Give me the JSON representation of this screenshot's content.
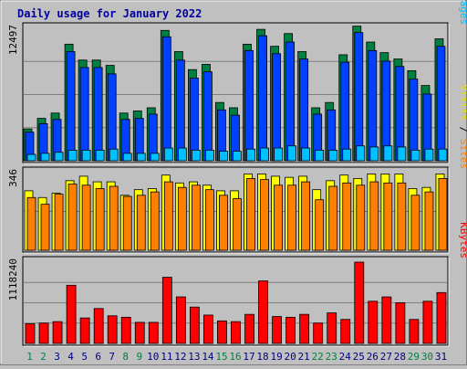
{
  "chart_data": {
    "type": "bar",
    "title": "Daily usage for January 2022",
    "categories": [
      "1",
      "2",
      "3",
      "4",
      "5",
      "6",
      "7",
      "8",
      "9",
      "10",
      "11",
      "12",
      "13",
      "14",
      "15",
      "16",
      "17",
      "18",
      "19",
      "20",
      "21",
      "22",
      "23",
      "24",
      "25",
      "26",
      "27",
      "28",
      "29",
      "30",
      "31"
    ],
    "weekend_days": [
      "1",
      "2",
      "8",
      "9",
      "15",
      "16",
      "22",
      "23",
      "29",
      "30"
    ],
    "panels": [
      {
        "id": "pages-files-hits",
        "ymax_label": "12497",
        "ymax": 12497,
        "label_parts": [
          "Pages",
          " / ",
          "Files",
          " / ",
          "Hits"
        ],
        "series": [
          {
            "name": "Hits",
            "color": "#008040",
            "values": [
              3000,
              4000,
              4500,
              11000,
              9500,
              9500,
              9000,
              4500,
              4700,
              5000,
              12300,
              10300,
              8600,
              9100,
              5500,
              5000,
              11000,
              12400,
              10800,
              12000,
              10300,
              5000,
              5500,
              10000,
              12700,
              11200,
              10200,
              9600,
              8500,
              7100,
              11500
            ]
          },
          {
            "name": "Files",
            "color": "#0040FF",
            "values": [
              2700,
              3500,
              3900,
              10300,
              8800,
              8800,
              8200,
              3900,
              4000,
              4400,
              11700,
              9500,
              7800,
              8400,
              4800,
              4300,
              10400,
              11800,
              10100,
              11200,
              9600,
              4400,
              4800,
              9300,
              12100,
              10400,
              9400,
              8900,
              7700,
              6300,
              10800
            ]
          },
          {
            "name": "Pages",
            "color": "#00C0FF",
            "values": [
              600,
              700,
              800,
              1000,
              1000,
              1000,
              1100,
              700,
              700,
              700,
              1200,
              1200,
              1000,
              1000,
              900,
              900,
              1100,
              1200,
              1200,
              1400,
              1200,
              1000,
              1000,
              1100,
              1400,
              1300,
              1400,
              1300,
              1000,
              1100,
              1100
            ]
          }
        ]
      },
      {
        "id": "visits-sites",
        "ymax_label": "346",
        "ymax": 346,
        "label_parts": [
          "Sites",
          " / ",
          "Visits"
        ],
        "series": [
          {
            "name": "Visits",
            "color": "#FFFF00",
            "values": [
              265,
              235,
              255,
              310,
              330,
              305,
              305,
              245,
              270,
              275,
              335,
              300,
              305,
              290,
              265,
              265,
              340,
              340,
              330,
              325,
              330,
              270,
              310,
              335,
              320,
              340,
              340,
              340,
              275,
              280,
              340
            ]
          },
          {
            "name": "Sites",
            "color": "#FF8000",
            "values": [
              235,
              205,
              250,
              295,
              290,
              275,
              285,
              240,
              245,
              260,
              305,
              280,
              290,
              270,
              245,
              230,
              320,
              315,
              290,
              290,
              305,
              225,
              285,
              300,
              290,
              305,
              300,
              300,
              245,
              260,
              320
            ]
          }
        ]
      },
      {
        "id": "kbytes",
        "ymax_label": "1118240",
        "ymax": 1118240,
        "label_parts": [
          "KBytes"
        ],
        "series": [
          {
            "name": "KBytes",
            "color": "#FF0000",
            "values": [
              270000,
              280000,
              300000,
              800000,
              350000,
              480000,
              380000,
              360000,
              290000,
              290000,
              910000,
              640000,
              500000,
              390000,
              310000,
              300000,
              400000,
              860000,
              370000,
              360000,
              400000,
              280000,
              420000,
              330000,
              1118240,
              580000,
              640000,
              560000,
              330000,
              580000,
              700000
            ]
          }
        ]
      }
    ],
    "label_colors": {
      "title": "#0000A0",
      "axis_text": "#000000",
      "weekday": "#000080",
      "weekend": "#008040",
      "Hits": "#008040",
      "Files": "#0040FF",
      "Pages": "#00C0FF",
      "Visits": "#E0E000",
      "Sites": "#FF8000",
      "KBytes": "#FF0000",
      "separator": "#000000"
    }
  }
}
